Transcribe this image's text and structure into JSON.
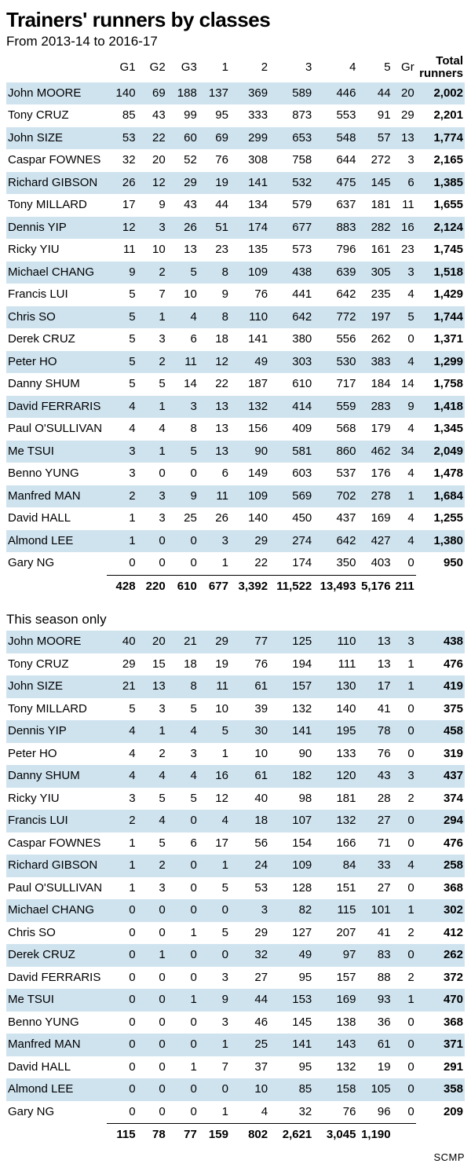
{
  "title": "Trainers' runners by classes",
  "credit": "SCMP",
  "sections": [
    {
      "subhead": "From 2013-14 to 2016-17",
      "show_total_header": true,
      "headers": [
        "G1",
        "G2",
        "G3",
        "1",
        "2",
        "3",
        "4",
        "5",
        "Gr"
      ],
      "total_header_top": "Total",
      "total_header_bottom": "runners",
      "rows": [
        {
          "n": "John MOORE",
          "v": [
            "140",
            "69",
            "188",
            "137",
            "369",
            "589",
            "446",
            "44",
            "20"
          ],
          "t": "2,002",
          "s": true
        },
        {
          "n": "Tony CRUZ",
          "v": [
            "85",
            "43",
            "99",
            "95",
            "333",
            "873",
            "553",
            "91",
            "29"
          ],
          "t": "2,201",
          "s": false
        },
        {
          "n": "John SIZE",
          "v": [
            "53",
            "22",
            "60",
            "69",
            "299",
            "653",
            "548",
            "57",
            "13"
          ],
          "t": "1,774",
          "s": true
        },
        {
          "n": "Caspar FOWNES",
          "v": [
            "32",
            "20",
            "52",
            "76",
            "308",
            "758",
            "644",
            "272",
            "3"
          ],
          "t": "2,165",
          "s": false
        },
        {
          "n": "Richard GIBSON",
          "v": [
            "26",
            "12",
            "29",
            "19",
            "141",
            "532",
            "475",
            "145",
            "6"
          ],
          "t": "1,385",
          "s": true
        },
        {
          "n": "Tony MILLARD",
          "v": [
            "17",
            "9",
            "43",
            "44",
            "134",
            "579",
            "637",
            "181",
            "11"
          ],
          "t": "1,655",
          "s": false
        },
        {
          "n": "Dennis YIP",
          "v": [
            "12",
            "3",
            "26",
            "51",
            "174",
            "677",
            "883",
            "282",
            "16"
          ],
          "t": "2,124",
          "s": true
        },
        {
          "n": "Ricky YIU",
          "v": [
            "11",
            "10",
            "13",
            "23",
            "135",
            "573",
            "796",
            "161",
            "23"
          ],
          "t": "1,745",
          "s": false
        },
        {
          "n": "Michael CHANG",
          "v": [
            "9",
            "2",
            "5",
            "8",
            "109",
            "438",
            "639",
            "305",
            "3"
          ],
          "t": "1,518",
          "s": true
        },
        {
          "n": "Francis LUI",
          "v": [
            "5",
            "7",
            "10",
            "9",
            "76",
            "441",
            "642",
            "235",
            "4"
          ],
          "t": "1,429",
          "s": false
        },
        {
          "n": "Chris SO",
          "v": [
            "5",
            "1",
            "4",
            "8",
            "110",
            "642",
            "772",
            "197",
            "5"
          ],
          "t": "1,744",
          "s": true
        },
        {
          "n": "Derek CRUZ",
          "v": [
            "5",
            "3",
            "6",
            "18",
            "141",
            "380",
            "556",
            "262",
            "0"
          ],
          "t": "1,371",
          "s": false
        },
        {
          "n": "Peter HO",
          "v": [
            "5",
            "2",
            "11",
            "12",
            "49",
            "303",
            "530",
            "383",
            "4"
          ],
          "t": "1,299",
          "s": true
        },
        {
          "n": "Danny SHUM",
          "v": [
            "5",
            "5",
            "14",
            "22",
            "187",
            "610",
            "717",
            "184",
            "14"
          ],
          "t": "1,758",
          "s": false
        },
        {
          "n": "David FERRARIS",
          "v": [
            "4",
            "1",
            "3",
            "13",
            "132",
            "414",
            "559",
            "283",
            "9"
          ],
          "t": "1,418",
          "s": true
        },
        {
          "n": "Paul O'SULLIVAN",
          "v": [
            "4",
            "4",
            "8",
            "13",
            "156",
            "409",
            "568",
            "179",
            "4"
          ],
          "t": "1,345",
          "s": false
        },
        {
          "n": "Me TSUI",
          "v": [
            "3",
            "1",
            "5",
            "13",
            "90",
            "581",
            "860",
            "462",
            "34"
          ],
          "t": "2,049",
          "s": true
        },
        {
          "n": "Benno YUNG",
          "v": [
            "3",
            "0",
            "0",
            "6",
            "149",
            "603",
            "537",
            "176",
            "4"
          ],
          "t": "1,478",
          "s": false
        },
        {
          "n": "Manfred MAN",
          "v": [
            "2",
            "3",
            "9",
            "11",
            "109",
            "569",
            "702",
            "278",
            "1"
          ],
          "t": "1,684",
          "s": true
        },
        {
          "n": "David HALL",
          "v": [
            "1",
            "3",
            "25",
            "26",
            "140",
            "450",
            "437",
            "169",
            "4"
          ],
          "t": "1,255",
          "s": false
        },
        {
          "n": "Almond LEE",
          "v": [
            "1",
            "0",
            "0",
            "3",
            "29",
            "274",
            "642",
            "427",
            "4"
          ],
          "t": "1,380",
          "s": true
        },
        {
          "n": "Gary NG",
          "v": [
            "0",
            "0",
            "0",
            "1",
            "22",
            "174",
            "350",
            "403",
            "0"
          ],
          "t": "950",
          "s": false
        }
      ],
      "totals": [
        "428",
        "220",
        "610",
        "677",
        "3,392",
        "11,522",
        "13,493",
        "5,176",
        "211"
      ]
    },
    {
      "subhead": "This season only",
      "show_total_header": false,
      "headers": [
        "",
        "",
        "",
        "",
        "",
        "",
        "",
        "",
        ""
      ],
      "rows": [
        {
          "n": "John MOORE",
          "v": [
            "40",
            "20",
            "21",
            "29",
            "77",
            "125",
            "110",
            "13",
            "3"
          ],
          "t": "438",
          "s": true
        },
        {
          "n": "Tony CRUZ",
          "v": [
            "29",
            "15",
            "18",
            "19",
            "76",
            "194",
            "111",
            "13",
            "1"
          ],
          "t": "476",
          "s": false
        },
        {
          "n": "John SIZE",
          "v": [
            "21",
            "13",
            "8",
            "11",
            "61",
            "157",
            "130",
            "17",
            "1"
          ],
          "t": "419",
          "s": true
        },
        {
          "n": "Tony MILLARD",
          "v": [
            "5",
            "3",
            "5",
            "10",
            "39",
            "132",
            "140",
            "41",
            "0"
          ],
          "t": "375",
          "s": false
        },
        {
          "n": "Dennis YIP",
          "v": [
            "4",
            "1",
            "4",
            "5",
            "30",
            "141",
            "195",
            "78",
            "0"
          ],
          "t": "458",
          "s": true
        },
        {
          "n": "Peter HO",
          "v": [
            "4",
            "2",
            "3",
            "1",
            "10",
            "90",
            "133",
            "76",
            "0"
          ],
          "t": "319",
          "s": false
        },
        {
          "n": "Danny SHUM",
          "v": [
            "4",
            "4",
            "4",
            "16",
            "61",
            "182",
            "120",
            "43",
            "3"
          ],
          "t": "437",
          "s": true
        },
        {
          "n": "Ricky YIU",
          "v": [
            "3",
            "5",
            "5",
            "12",
            "40",
            "98",
            "181",
            "28",
            "2"
          ],
          "t": "374",
          "s": false
        },
        {
          "n": "Francis LUI",
          "v": [
            "2",
            "4",
            "0",
            "4",
            "18",
            "107",
            "132",
            "27",
            "0"
          ],
          "t": "294",
          "s": true
        },
        {
          "n": "Caspar FOWNES",
          "v": [
            "1",
            "5",
            "6",
            "17",
            "56",
            "154",
            "166",
            "71",
            "0"
          ],
          "t": "476",
          "s": false
        },
        {
          "n": "Richard GIBSON",
          "v": [
            "1",
            "2",
            "0",
            "1",
            "24",
            "109",
            "84",
            "33",
            "4"
          ],
          "t": "258",
          "s": true
        },
        {
          "n": "Paul O'SULLIVAN",
          "v": [
            "1",
            "3",
            "0",
            "5",
            "53",
            "128",
            "151",
            "27",
            "0"
          ],
          "t": "368",
          "s": false
        },
        {
          "n": "Michael CHANG",
          "v": [
            "0",
            "0",
            "0",
            "0",
            "3",
            "82",
            "115",
            "101",
            "1"
          ],
          "t": "302",
          "s": true
        },
        {
          "n": "Chris SO",
          "v": [
            "0",
            "0",
            "1",
            "5",
            "29",
            "127",
            "207",
            "41",
            "2"
          ],
          "t": "412",
          "s": false
        },
        {
          "n": "Derek CRUZ",
          "v": [
            "0",
            "1",
            "0",
            "0",
            "32",
            "49",
            "97",
            "83",
            "0"
          ],
          "t": "262",
          "s": true
        },
        {
          "n": "David FERRARIS",
          "v": [
            "0",
            "0",
            "0",
            "3",
            "27",
            "95",
            "157",
            "88",
            "2"
          ],
          "t": "372",
          "s": false
        },
        {
          "n": "Me TSUI",
          "v": [
            "0",
            "0",
            "1",
            "9",
            "44",
            "153",
            "169",
            "93",
            "1"
          ],
          "t": "470",
          "s": true
        },
        {
          "n": "Benno YUNG",
          "v": [
            "0",
            "0",
            "0",
            "3",
            "46",
            "145",
            "138",
            "36",
            "0"
          ],
          "t": "368",
          "s": false
        },
        {
          "n": "Manfred MAN",
          "v": [
            "0",
            "0",
            "0",
            "1",
            "25",
            "141",
            "143",
            "61",
            "0"
          ],
          "t": "371",
          "s": true
        },
        {
          "n": "David HALL",
          "v": [
            "0",
            "0",
            "1",
            "7",
            "37",
            "95",
            "132",
            "19",
            "0"
          ],
          "t": "291",
          "s": false
        },
        {
          "n": "Almond LEE",
          "v": [
            "0",
            "0",
            "0",
            "0",
            "10",
            "85",
            "158",
            "105",
            "0"
          ],
          "t": "358",
          "s": true
        },
        {
          "n": "Gary NG",
          "v": [
            "0",
            "0",
            "0",
            "1",
            "4",
            "32",
            "76",
            "96",
            "0"
          ],
          "t": "209",
          "s": false
        }
      ],
      "totals": [
        "115",
        "78",
        "77",
        "159",
        "802",
        "2,621",
        "3,045",
        "1,190",
        ""
      ]
    }
  ]
}
